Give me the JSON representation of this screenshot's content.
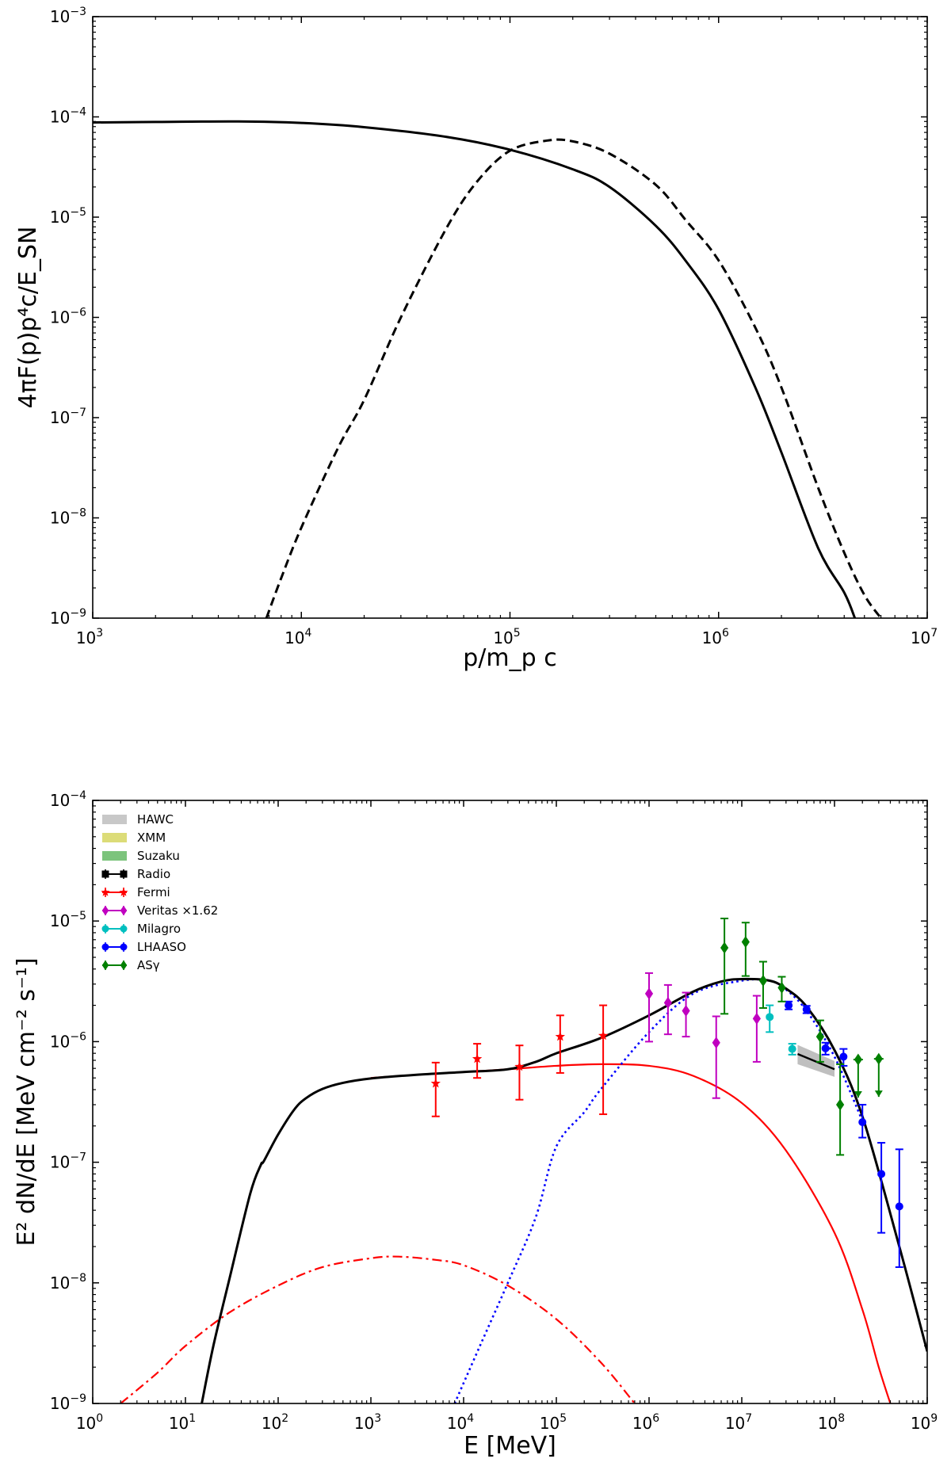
{
  "chart_data": [
    {
      "type": "line",
      "xscale": "log",
      "yscale": "log",
      "xlim": [
        1000,
        10000000
      ],
      "ylim": [
        1e-09,
        0.001
      ],
      "xlabel": "p/m_p c",
      "ylabel": "4πF(p)p⁴c/E_SN",
      "x_ticks": [
        {
          "value": 1000,
          "base": "10",
          "exp": "3"
        },
        {
          "value": 10000,
          "base": "10",
          "exp": "4"
        },
        {
          "value": 100000,
          "base": "10",
          "exp": "5"
        },
        {
          "value": 1000000,
          "base": "10",
          "exp": "6"
        },
        {
          "value": 10000000,
          "base": "10",
          "exp": "7"
        }
      ],
      "y_ticks": [
        {
          "value": 1e-09,
          "base": "10",
          "exp": "−9"
        },
        {
          "value": 1e-08,
          "base": "10",
          "exp": "−8"
        },
        {
          "value": 1e-07,
          "base": "10",
          "exp": "−7"
        },
        {
          "value": 1e-06,
          "base": "10",
          "exp": "−6"
        },
        {
          "value": 1e-05,
          "base": "10",
          "exp": "−5"
        },
        {
          "value": 0.0001,
          "base": "10",
          "exp": "−4"
        },
        {
          "value": 0.001,
          "base": "10",
          "exp": "−3"
        }
      ],
      "series": [
        {
          "name": "solid",
          "color": "#000000",
          "style": "solid",
          "x": [
            1000,
            2000,
            5000,
            10000,
            20000,
            50000,
            100000,
            200000,
            300000,
            500000,
            700000,
            1000000,
            1500000,
            2000000,
            3000000,
            4000000,
            4500000
          ],
          "y": [
            8.8e-05,
            8.9e-05,
            9e-05,
            8.7e-05,
            7.9e-05,
            6.3e-05,
            4.7e-05,
            3e-05,
            2e-05,
            8.2e-06,
            3.6e-06,
            1.2e-06,
            2e-07,
            4.5e-08,
            5e-09,
            1.8e-09,
            1e-09
          ]
        },
        {
          "name": "dashed",
          "color": "#000000",
          "style": "dashed",
          "x": [
            6800,
            8000,
            10000,
            15000,
            20000,
            30000,
            50000,
            70000,
            100000,
            150000,
            200000,
            300000,
            500000,
            700000,
            1000000,
            1500000,
            2000000,
            3000000,
            4000000,
            5000000,
            6000000
          ],
          "y": [
            1e-09,
            2.5e-09,
            8e-09,
            5e-08,
            1.5e-07,
            1e-06,
            8e-06,
            2.3e-05,
            4.6e-05,
            5.8e-05,
            5.7e-05,
            4.3e-05,
            2.1e-05,
            9.2e-06,
            3.7e-06,
            7.9e-07,
            2e-07,
            2e-08,
            4.5e-09,
            1.7e-09,
            1e-09
          ]
        }
      ]
    },
    {
      "type": "line",
      "xscale": "log",
      "yscale": "log",
      "xlim": [
        1,
        1000000000
      ],
      "ylim": [
        1e-09,
        0.0001
      ],
      "xlabel": "E [MeV]",
      "ylabel": "E² dN/dE [MeV cm⁻² s⁻¹]",
      "x_ticks": [
        {
          "value": 1,
          "base": "10",
          "exp": "0"
        },
        {
          "value": 10,
          "base": "10",
          "exp": "1"
        },
        {
          "value": 100,
          "base": "10",
          "exp": "2"
        },
        {
          "value": 1000,
          "base": "10",
          "exp": "3"
        },
        {
          "value": 10000,
          "base": "10",
          "exp": "4"
        },
        {
          "value": 100000,
          "base": "10",
          "exp": "5"
        },
        {
          "value": 1000000,
          "base": "10",
          "exp": "6"
        },
        {
          "value": 10000000,
          "base": "10",
          "exp": "7"
        },
        {
          "value": 100000000,
          "base": "10",
          "exp": "8"
        },
        {
          "value": 1000000000,
          "base": "10",
          "exp": "9"
        }
      ],
      "y_ticks": [
        {
          "value": 1e-09,
          "base": "10",
          "exp": "−9"
        },
        {
          "value": 1e-08,
          "base": "10",
          "exp": "−8"
        },
        {
          "value": 1e-07,
          "base": "10",
          "exp": "−7"
        },
        {
          "value": 1e-06,
          "base": "10",
          "exp": "−6"
        },
        {
          "value": 1e-05,
          "base": "10",
          "exp": "−5"
        },
        {
          "value": 0.0001,
          "base": "10",
          "exp": "−4"
        }
      ],
      "curves": [
        {
          "name": "total",
          "color": "#000000",
          "style": "solid",
          "width": 3,
          "x": [
            15,
            20,
            30,
            50,
            65,
            70,
            100,
            150,
            200,
            300,
            500,
            1000,
            3000,
            10000,
            30000,
            60000,
            100000,
            300000,
            1000000,
            3000000,
            6000000,
            10000000,
            20000000,
            30000000,
            50000000,
            100000000,
            200000000,
            500000000,
            1000000000
          ],
          "y": [
            1e-09,
            3e-09,
            1.1e-08,
            5.5e-08,
            9.5e-08,
            1.02e-07,
            1.7e-07,
            2.75e-07,
            3.4e-07,
            4.05e-07,
            4.55e-07,
            4.95e-07,
            5.3e-07,
            5.6e-07,
            5.9e-07,
            6.8e-07,
            8e-07,
            1.07e-06,
            1.65e-06,
            2.6e-06,
            3.15e-06,
            3.3e-06,
            3.2e-06,
            2.75e-06,
            1.95e-06,
            8.5e-07,
            2.4e-07,
            2e-08,
            2.7e-09
          ]
        },
        {
          "name": "red solid",
          "color": "#ff0000",
          "style": "solid",
          "width": 2.2,
          "x": [
            1000,
            3000,
            10000,
            30000,
            100000,
            300000,
            1000000,
            3000000,
            10000000,
            30000000,
            100000000,
            200000000,
            300000000,
            400000000
          ],
          "y": [
            5e-07,
            5.3e-07,
            5.6e-07,
            5.9e-07,
            6.3e-07,
            6.5e-07,
            6.3e-07,
            5.2e-07,
            3.1e-07,
            1.25e-07,
            2.6e-08,
            6e-09,
            2e-09,
            1e-09
          ]
        },
        {
          "name": "red dash-dot",
          "color": "#ff0000",
          "style": "dashdot",
          "width": 2.2,
          "x": [
            2,
            5,
            10,
            30,
            100,
            300,
            1000,
            2000,
            5000,
            10000,
            30000,
            100000,
            300000,
            700000
          ],
          "y": [
            1e-09,
            1.8e-09,
            3e-09,
            5.7e-09,
            9.5e-09,
            1.35e-08,
            1.6e-08,
            1.65e-08,
            1.55e-08,
            1.4e-08,
            9.5e-09,
            5e-09,
            2.2e-09,
            1e-09
          ]
        },
        {
          "name": "blue dotted",
          "color": "#0000ff",
          "style": "dotted",
          "width": 2.6,
          "x": [
            8000,
            15000,
            30000,
            60000,
            100000,
            200000,
            300000,
            1000000,
            3000000,
            10000000,
            20000000,
            30000000,
            50000000,
            100000000,
            200000000
          ],
          "y": [
            1e-09,
            3e-09,
            1e-08,
            3.5e-08,
            1.35e-07,
            2.6e-07,
            4e-07,
            1.2e-06,
            2.5e-06,
            3.2e-06,
            3.2e-06,
            2.7e-06,
            1.8e-06,
            7.5e-07,
            2.2e-07
          ]
        }
      ],
      "bands": [
        {
          "name": "HAWC",
          "color": "#b4b4b4",
          "x": [
            40000000,
            100000000
          ],
          "lower": [
            6.5e-07,
            5.1e-07
          ],
          "upper": [
            9.4e-07,
            6.9e-07
          ],
          "line": [
            7.9e-07,
            5.9e-07
          ]
        }
      ],
      "points": [
        {
          "name": "Fermi",
          "color": "#ff0000",
          "marker": "star",
          "data": [
            {
              "x": 5000,
              "y": 4.5e-07,
              "lo": 2.4e-07,
              "hi": 6.7e-07
            },
            {
              "x": 14000,
              "y": 7.2e-07,
              "lo": 5e-07,
              "hi": 9.6e-07
            },
            {
              "x": 40000,
              "y": 6.2e-07,
              "lo": 3.3e-07,
              "hi": 9.3e-07
            },
            {
              "x": 110000,
              "y": 1.1e-06,
              "lo": 5.5e-07,
              "hi": 1.65e-06
            },
            {
              "x": 320000,
              "y": 1.12e-06,
              "lo": 2.5e-07,
              "hi": 2e-06
            }
          ]
        },
        {
          "name": "Veritas ×1.62",
          "color": "#c000c0",
          "marker": "diamond",
          "data": [
            {
              "x": 1000000,
              "y": 2.5e-06,
              "lo": 1e-06,
              "hi": 3.7e-06
            },
            {
              "x": 1600000,
              "y": 2.1e-06,
              "lo": 1.15e-06,
              "hi": 2.95e-06
            },
            {
              "x": 2500000,
              "y": 1.8e-06,
              "lo": 1.1e-06,
              "hi": 2.55e-06
            },
            {
              "x": 5300000,
              "y": 9.8e-07,
              "lo": 3.4e-07,
              "hi": 1.62e-06
            },
            {
              "x": 14500000,
              "y": 1.55e-06,
              "lo": 6.8e-07,
              "hi": 2.4e-06
            }
          ]
        },
        {
          "name": "Milagro",
          "color": "#00bfbf",
          "marker": "circle",
          "data": [
            {
              "x": 20000000,
              "y": 1.6e-06,
              "lo": 1.2e-06,
              "hi": 2e-06
            },
            {
              "x": 35000000,
              "y": 8.7e-07,
              "lo": 7.8e-07,
              "hi": 9.6e-07
            }
          ]
        },
        {
          "name": "LHAASO",
          "color": "#0000ff",
          "marker": "circle",
          "data": [
            {
              "x": 32000000,
              "y": 2e-06,
              "lo": 1.85e-06,
              "hi": 2.15e-06
            },
            {
              "x": 50000000,
              "y": 1.85e-06,
              "lo": 1.72e-06,
              "hi": 1.98e-06
            },
            {
              "x": 80000000,
              "y": 8.8e-07,
              "lo": 7.8e-07,
              "hi": 9.8e-07
            },
            {
              "x": 125000000,
              "y": 7.5e-07,
              "lo": 6.3e-07,
              "hi": 8.7e-07
            },
            {
              "x": 200000000,
              "y": 2.15e-07,
              "lo": 1.6e-07,
              "hi": 3e-07
            },
            {
              "x": 320000000,
              "y": 8e-08,
              "lo": 2.6e-08,
              "hi": 1.45e-07
            },
            {
              "x": 500000000,
              "y": 4.3e-08,
              "lo": 1.35e-08,
              "hi": 1.28e-07
            }
          ]
        },
        {
          "name": "ASγ",
          "color": "#008000",
          "marker": "diamond",
          "data": [
            {
              "x": 6500000,
              "y": 6e-06,
              "lo": 1.7e-06,
              "hi": 1.05e-05
            },
            {
              "x": 11000000,
              "y": 6.7e-06,
              "lo": 3.5e-06,
              "hi": 9.7e-06
            },
            {
              "x": 17000000,
              "y": 3.2e-06,
              "lo": 1.9e-06,
              "hi": 4.6e-06
            },
            {
              "x": 27000000,
              "y": 2.8e-06,
              "lo": 2.15e-06,
              "hi": 3.45e-06
            },
            {
              "x": 70000000,
              "y": 1.1e-06,
              "lo": 6.8e-07,
              "hi": 1.5e-06
            },
            {
              "x": 115000000,
              "y": 3e-07,
              "lo": 1.15e-07,
              "hi": 6.5e-07
            },
            {
              "x": 180000000,
              "y": 7.1e-07,
              "arrow": true
            },
            {
              "x": 300000000,
              "y": 7.2e-07,
              "arrow": true
            }
          ]
        }
      ],
      "legend": {
        "position": "top-left",
        "entries": [
          {
            "label": "HAWC",
            "kind": "patch",
            "color": "#c8c8c8"
          },
          {
            "label": "XMM",
            "kind": "patch",
            "color": "#dcdc78"
          },
          {
            "label": "Suzaku",
            "kind": "patch",
            "color": "#7cc47c"
          },
          {
            "label": "Radio",
            "kind": "marker",
            "marker": "square",
            "color": "#000000"
          },
          {
            "label": "Fermi",
            "kind": "marker",
            "marker": "star",
            "color": "#ff0000"
          },
          {
            "label": "Veritas ×1.62",
            "kind": "marker",
            "marker": "diamond",
            "color": "#c000c0"
          },
          {
            "label": "Milagro",
            "kind": "marker",
            "marker": "circle",
            "color": "#00bfbf"
          },
          {
            "label": "LHAASO",
            "kind": "marker",
            "marker": "circle",
            "color": "#0000ff"
          },
          {
            "label": "ASγ",
            "kind": "marker",
            "marker": "diamond",
            "color": "#008000"
          }
        ]
      }
    }
  ]
}
